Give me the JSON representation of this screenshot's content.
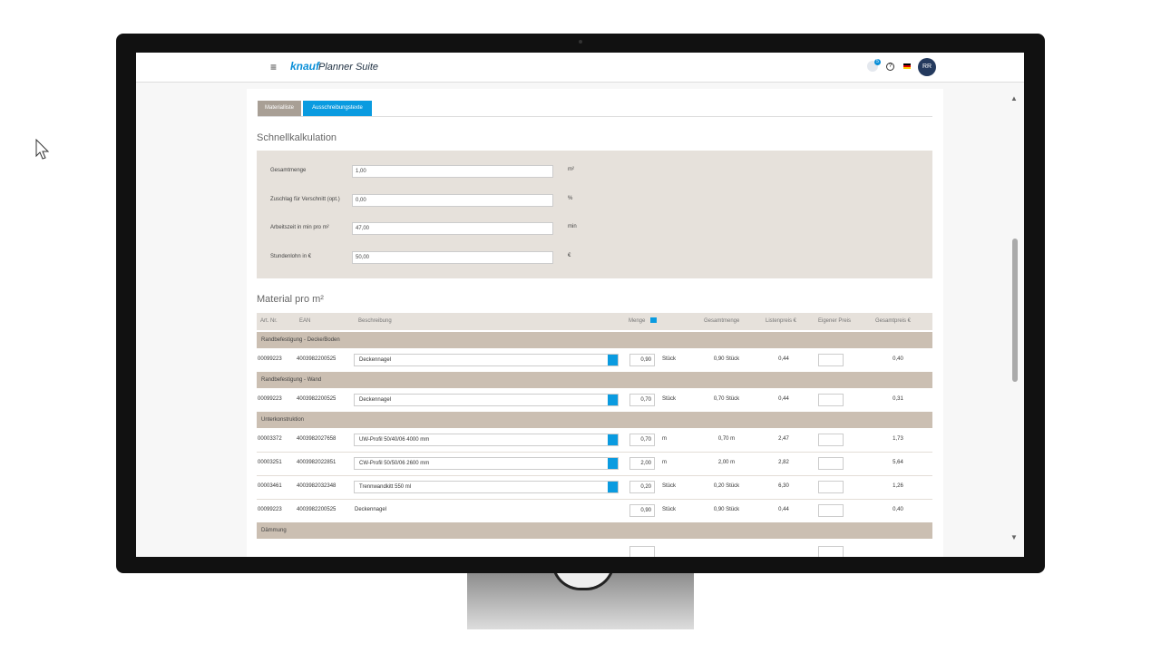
{
  "header": {
    "brand": "knauf",
    "app": "Planner Suite",
    "badge": "5",
    "avatar": "RR"
  },
  "tabs": [
    "Materialliste",
    "Ausschreibungstexte"
  ],
  "quick_calc": {
    "title": "Schnellkalkulation",
    "rows": [
      {
        "label": "Gesamtmenge",
        "value": "1,00",
        "unit": "m²"
      },
      {
        "label": "Zuschlag für Verschnitt (opt.)",
        "value": "0,00",
        "unit": "%"
      },
      {
        "label": "Arbeitszeit in min pro m²",
        "value": "47,00",
        "unit": "min"
      },
      {
        "label": "Stundenlohn in €",
        "value": "50,00",
        "unit": "€"
      }
    ]
  },
  "material": {
    "title": "Material pro m²",
    "columns": [
      "Art. Nr.",
      "EAN",
      "Beschreibung",
      "Menge",
      "Gesamtmenge",
      "Listenpreis €",
      "Eigener Preis",
      "Gesamtpreis €"
    ],
    "groups": [
      {
        "name": "Randbefestigung - Decke/Boden",
        "rows": [
          {
            "art": "00099223",
            "ean": "4003982200525",
            "description": "Deckennagel",
            "select": true,
            "quantity": "0,90",
            "unit": "Stück",
            "total_quantity": "0,90 Stück",
            "list_price": "0,44",
            "total_price": "0,40"
          }
        ]
      },
      {
        "name": "Randbefestigung - Wand",
        "rows": [
          {
            "art": "00099223",
            "ean": "4003982200525",
            "description": "Deckennagel",
            "select": true,
            "quantity": "0,70",
            "unit": "Stück",
            "total_quantity": "0,70 Stück",
            "list_price": "0,44",
            "total_price": "0,31"
          }
        ]
      },
      {
        "name": "Unterkonstruktion",
        "rows": [
          {
            "art": "00003372",
            "ean": "4003982027658",
            "description": "UW-Profil 50/40/06 4000 mm",
            "select": true,
            "quantity": "0,70",
            "unit": "m",
            "total_quantity": "0,70 m",
            "list_price": "2,47",
            "total_price": "1,73"
          },
          {
            "art": "00003251",
            "ean": "4003982022851",
            "description": "CW-Profil 50/50/06 2600 mm",
            "select": true,
            "quantity": "2,00",
            "unit": "m",
            "total_quantity": "2,00 m",
            "list_price": "2,82",
            "total_price": "5,64"
          },
          {
            "art": "00003461",
            "ean": "4003982032348",
            "description": "Trennwandkitt 550 ml",
            "select": true,
            "quantity": "0,20",
            "unit": "Stück",
            "total_quantity": "0,20 Stück",
            "list_price": "6,30",
            "total_price": "1,26"
          },
          {
            "art": "00099223",
            "ean": "4003982200525",
            "description": "Deckennagel",
            "select": false,
            "quantity": "0,90",
            "unit": "Stück",
            "total_quantity": "0,90 Stück",
            "list_price": "0,44",
            "total_price": "0,40"
          }
        ]
      },
      {
        "name": "Dämmung",
        "rows": []
      }
    ]
  }
}
